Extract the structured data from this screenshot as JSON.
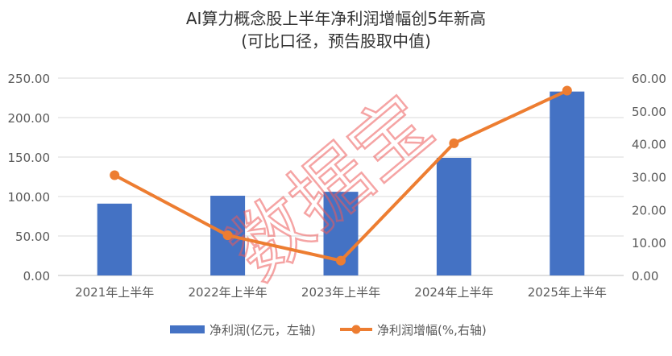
{
  "chart_data": {
    "type": "bar+line",
    "title": "AI算力概念股上半年净利润增幅创5年新高",
    "subtitle": "(可比口径，预告股取中值)",
    "categories": [
      "2021年上半年",
      "2022年上半年",
      "2023年上半年",
      "2024年上半年",
      "2025年上半年"
    ],
    "series": [
      {
        "name": "净利润(亿元，左轴)",
        "type": "bar",
        "axis": "left",
        "color": "#4472C4",
        "values": [
          91,
          101,
          106,
          149,
          233
        ]
      },
      {
        "name": "净利润增幅(%,右轴)",
        "type": "line",
        "axis": "right",
        "color": "#ED7D31",
        "values": [
          30.5,
          12.2,
          4.5,
          40.2,
          56.2
        ]
      }
    ],
    "y_left": {
      "min": 0,
      "max": 250,
      "step": 50,
      "tick_labels": [
        "0.00",
        "50.00",
        "100.00",
        "150.00",
        "200.00",
        "250.00"
      ]
    },
    "y_right": {
      "min": 0,
      "max": 60,
      "step": 10,
      "tick_labels": [
        "0.00",
        "10.00",
        "20.00",
        "30.00",
        "40.00",
        "50.00",
        "60.00"
      ]
    },
    "grid": true,
    "legend_position": "bottom",
    "watermark": "数据宝"
  }
}
